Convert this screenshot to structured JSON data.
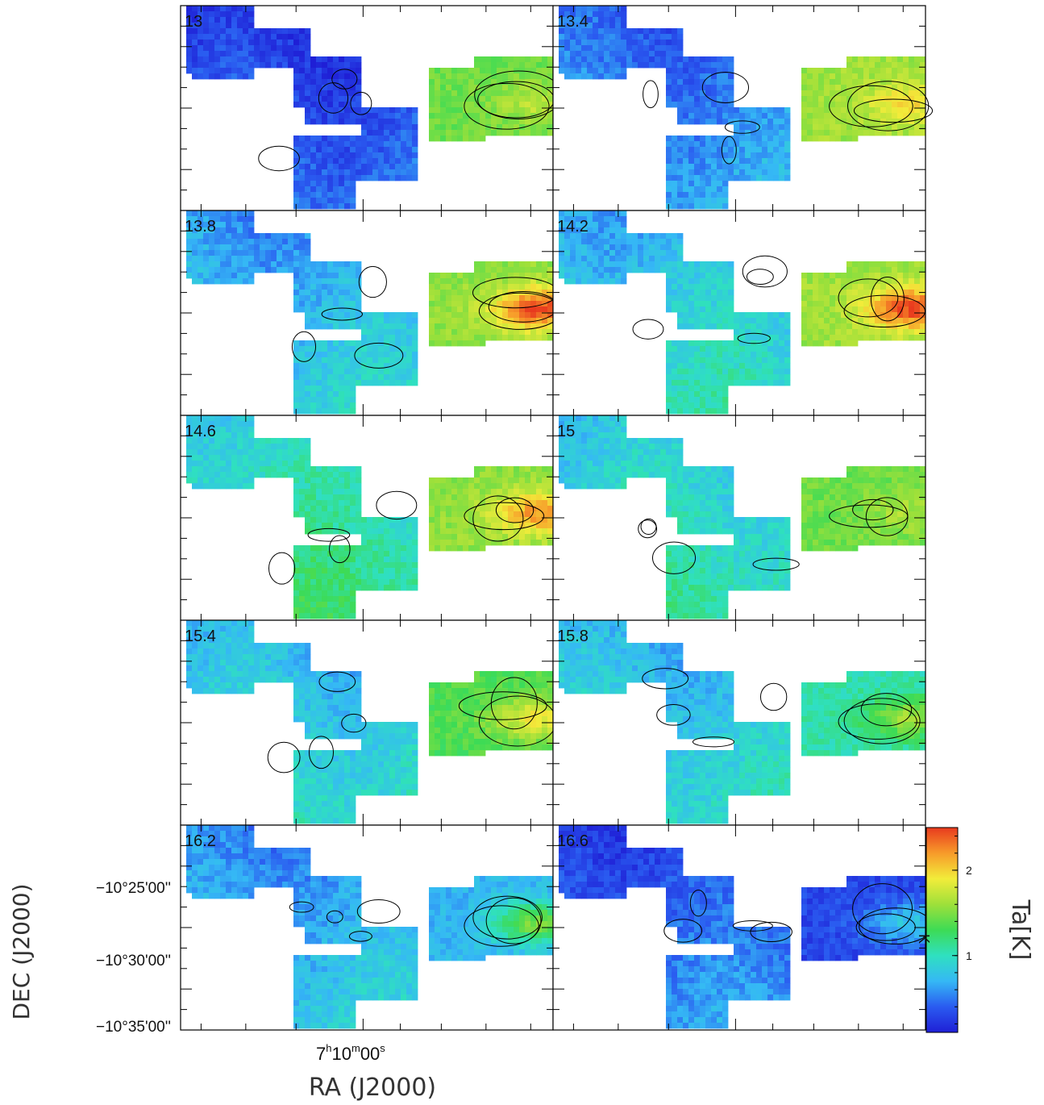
{
  "chart_data": {
    "type": "heatmap",
    "panel_labels": [
      "13",
      "13.4",
      "13.8",
      "14.2",
      "14.6",
      "15",
      "15.4",
      "15.8",
      "16.2",
      "16.6"
    ],
    "xlabel": "RA (J2000)",
    "ylabel": "DEC (J2000)",
    "x_tick_label": {
      "base": "7",
      "sup_h": "h",
      "min": "10",
      "sup_m": "m",
      "sec": "00",
      "sup_s": "s"
    },
    "y_tick_labels": [
      "−10°25'00''",
      "−10°30'00''",
      "−10°35'00''"
    ],
    "colorbar": {
      "label": "Ta[K]",
      "unit_mark": "K",
      "ticks": [
        "1",
        "2"
      ],
      "tick_values": [
        1,
        2
      ],
      "range": [
        0.1,
        2.5
      ],
      "colormap": [
        "#1f1fd6",
        "#2a5bf0",
        "#35b8f5",
        "#2fe0c0",
        "#3ddb55",
        "#9ee03a",
        "#f2ec3a",
        "#f79b2a",
        "#e83a1e"
      ]
    },
    "panels": [
      {
        "label": "13",
        "left_region_level": 0.35,
        "right_region_level": 1.45,
        "right_peak": 1.7
      },
      {
        "label": "13.4",
        "left_region_level": 0.55,
        "right_region_level": 1.6,
        "right_peak": 1.95
      },
      {
        "label": "13.8",
        "left_region_level": 0.75,
        "right_region_level": 1.55,
        "right_peak": 2.45
      },
      {
        "label": "14.2",
        "left_region_level": 0.85,
        "right_region_level": 1.6,
        "right_peak": 2.45
      },
      {
        "label": "14.6",
        "left_region_level": 1.05,
        "right_region_level": 1.55,
        "right_peak": 2.2
      },
      {
        "label": "15",
        "left_region_level": 0.95,
        "right_region_level": 1.45,
        "right_peak": 1.65
      },
      {
        "label": "15.4",
        "left_region_level": 0.85,
        "right_region_level": 1.35,
        "right_peak": 1.9
      },
      {
        "label": "15.8",
        "left_region_level": 0.85,
        "right_region_level": 1.05,
        "right_peak": 1.6
      },
      {
        "label": "16.2",
        "left_region_level": 0.7,
        "right_region_level": 0.7,
        "right_peak": 1.5
      },
      {
        "label": "16.6",
        "left_region_level": 0.45,
        "right_region_level": 0.3,
        "right_peak": 0.8
      }
    ]
  }
}
